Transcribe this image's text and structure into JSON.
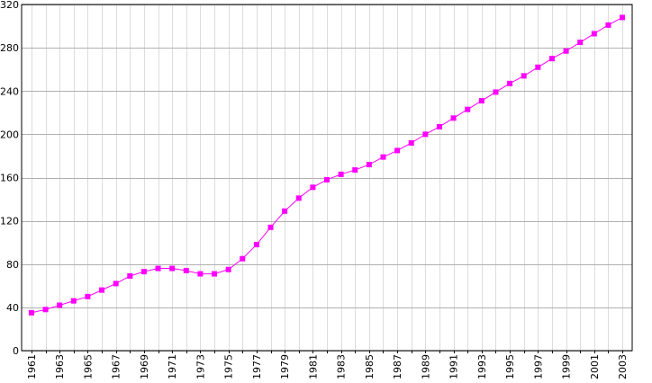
{
  "chart_data": {
    "type": "line",
    "title": "",
    "xlabel": "",
    "ylabel": "",
    "x": [
      1961,
      1962,
      1963,
      1964,
      1965,
      1966,
      1967,
      1968,
      1969,
      1970,
      1971,
      1972,
      1973,
      1974,
      1975,
      1976,
      1977,
      1978,
      1979,
      1980,
      1981,
      1982,
      1983,
      1984,
      1985,
      1986,
      1987,
      1988,
      1989,
      1990,
      1991,
      1992,
      1993,
      1994,
      1995,
      1996,
      1997,
      1998,
      1999,
      2000,
      2001,
      2002,
      2003
    ],
    "series": [
      {
        "values": [
          35,
          38,
          42,
          46,
          50,
          56,
          62,
          69,
          73,
          76,
          76,
          74,
          71,
          71,
          75,
          85,
          98,
          114,
          129,
          141,
          151,
          158,
          163,
          167,
          172,
          179,
          185,
          192,
          200,
          207,
          215,
          223,
          231,
          239,
          247,
          254,
          262,
          270,
          277,
          285,
          293,
          301,
          308
        ]
      }
    ],
    "xticks": [
      "1961",
      "1963",
      "1965",
      "1967",
      "1969",
      "1971",
      "1973",
      "1975",
      "1977",
      "1979",
      "1981",
      "1983",
      "1985",
      "1987",
      "1989",
      "1991",
      "1993",
      "1995",
      "1997",
      "1999",
      "2001",
      "2003"
    ],
    "yticks": [
      0,
      40,
      80,
      120,
      160,
      200,
      240,
      280,
      320
    ],
    "ylim": [
      0,
      320
    ],
    "xlim": [
      1960.3,
      2003.7
    ],
    "grid": true,
    "legend": "none",
    "colors": {
      "line": "#ff00ff",
      "marker": "#ff00ff",
      "grid_major": "#b0b0b0",
      "grid_minor": "#dcdcdc",
      "axis": "#000000"
    }
  }
}
